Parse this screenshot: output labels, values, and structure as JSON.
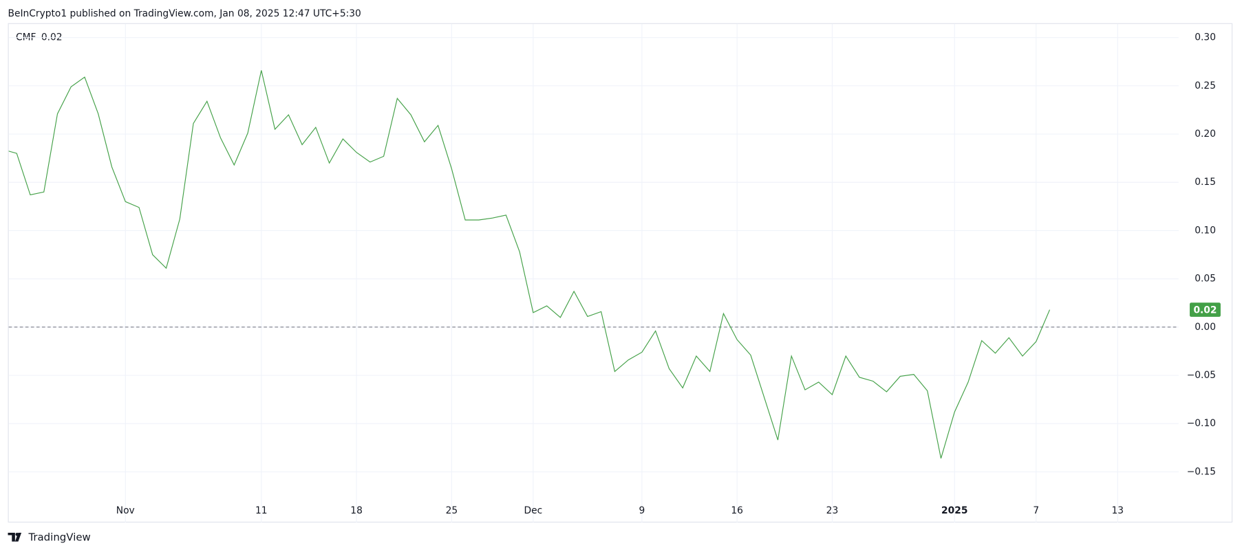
{
  "header": {
    "text": "BeInCrypto1 published on TradingView.com, Jan 08, 2025 12:47 UTC+5:30"
  },
  "footer": {
    "brand": "TradingView"
  },
  "chart_data": {
    "type": "line",
    "categories": [
      null,
      null,
      null,
      null,
      null,
      null,
      null,
      null,
      null,
      "Nov",
      null,
      null,
      null,
      null,
      null,
      null,
      null,
      null,
      null,
      "11",
      null,
      null,
      null,
      null,
      null,
      null,
      "18",
      null,
      null,
      null,
      null,
      null,
      null,
      "25",
      null,
      null,
      null,
      null,
      null,
      "Dec",
      null,
      null,
      null,
      null,
      null,
      null,
      null,
      "9",
      null,
      null,
      null,
      null,
      null,
      null,
      "16",
      null,
      null,
      null,
      null,
      null,
      null,
      "23",
      null,
      null,
      null,
      null,
      null,
      null,
      null,
      null,
      "2025",
      null,
      null,
      null,
      null,
      null,
      "7",
      null,
      null,
      null,
      null,
      null,
      "13",
      null,
      null,
      null,
      null
    ],
    "series": [
      {
        "name": "CMF",
        "color": "#43a047",
        "values": [
          0.184,
          0.18,
          0.137,
          0.14,
          0.221,
          0.249,
          0.259,
          0.221,
          0.166,
          0.13,
          0.124,
          0.075,
          0.061,
          0.112,
          0.211,
          0.234,
          0.196,
          0.168,
          0.201,
          0.266,
          0.205,
          0.22,
          0.189,
          0.207,
          0.17,
          0.195,
          0.181,
          0.171,
          0.177,
          0.237,
          0.22,
          0.192,
          0.209,
          0.164,
          0.111,
          0.111,
          0.113,
          0.116,
          0.078,
          0.015,
          0.022,
          0.01,
          0.037,
          0.011,
          0.016,
          -0.046,
          -0.034,
          -0.026,
          -0.004,
          -0.043,
          -0.063,
          -0.03,
          -0.046,
          0.014,
          -0.013,
          -0.029,
          -0.073,
          -0.117,
          -0.03,
          -0.065,
          -0.057,
          -0.07,
          -0.03,
          -0.052,
          -0.056,
          -0.067,
          -0.051,
          -0.049,
          -0.066,
          -0.136,
          -0.088,
          -0.057,
          -0.014,
          -0.027,
          -0.011,
          -0.03,
          -0.015,
          0.018,
          null,
          null,
          null,
          null,
          null,
          null,
          null,
          null,
          null
        ],
        "value_labels": [
          null,
          null,
          null,
          null,
          null,
          null,
          null,
          null,
          null,
          null,
          null,
          null,
          null,
          null,
          null,
          null,
          null,
          null,
          null,
          null,
          null,
          null,
          null,
          null,
          null,
          null,
          null,
          null,
          null,
          null,
          null,
          null,
          null,
          null,
          null,
          null,
          null,
          null,
          null,
          null,
          null,
          null,
          null,
          null,
          null,
          null,
          null,
          null,
          null,
          null,
          null,
          null,
          null,
          null,
          null,
          null,
          null,
          null,
          null,
          null,
          null,
          null,
          null,
          null,
          null,
          null,
          null,
          null,
          null,
          null,
          null,
          null,
          null,
          null,
          null,
          null,
          null,
          "0.02",
          null,
          null,
          null,
          null,
          null,
          null,
          null,
          null,
          null
        ]
      }
    ],
    "ylim": [
      -0.2,
      0.31
    ],
    "yticks": [
      {
        "value": 0.3,
        "label": "0.30"
      },
      {
        "value": 0.25,
        "label": "0.25"
      },
      {
        "value": 0.2,
        "label": "0.20"
      },
      {
        "value": 0.15,
        "label": "0.15"
      },
      {
        "value": 0.1,
        "label": "0.10"
      },
      {
        "value": 0.05,
        "label": "0.05"
      },
      {
        "value": 0,
        "label": "0.00"
      },
      {
        "value": -0.05,
        "label": "−0.05"
      },
      {
        "value": -0.1,
        "label": "−0.10"
      },
      {
        "value": -0.15,
        "label": "−0.15"
      }
    ],
    "reference_line": 0,
    "grid": true
  }
}
